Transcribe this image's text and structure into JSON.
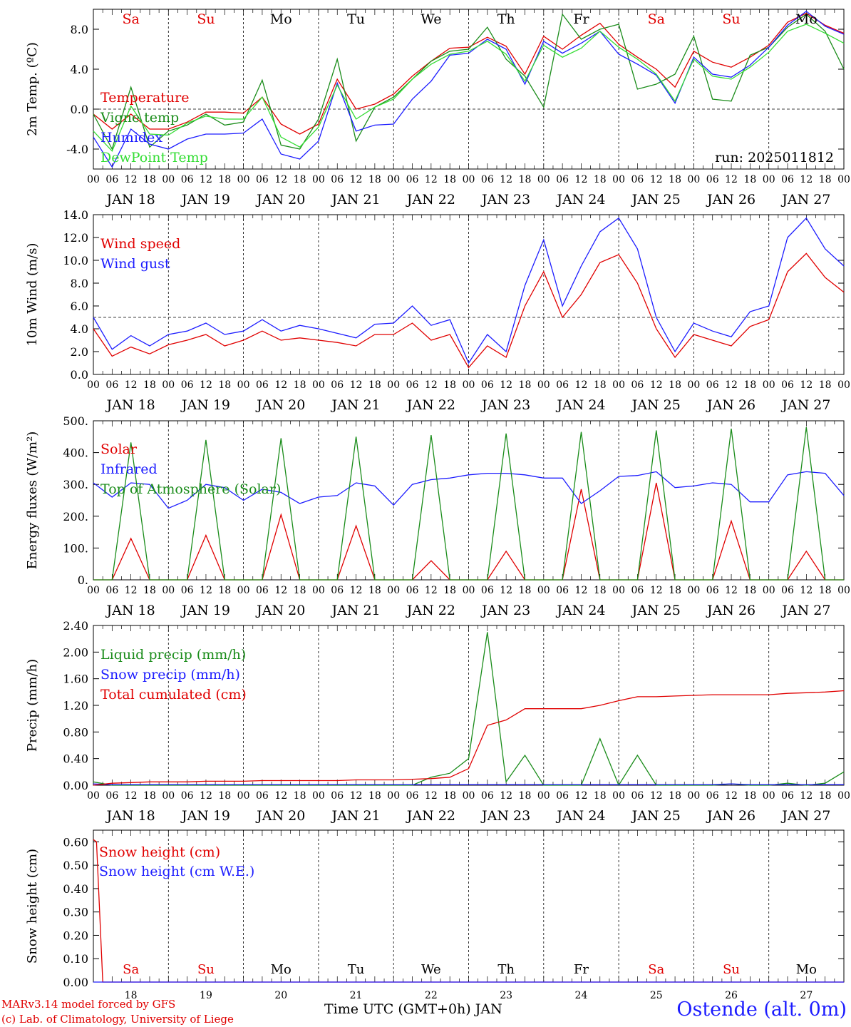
{
  "days": [
    "18",
    "19",
    "20",
    "21",
    "22",
    "23",
    "24",
    "25",
    "26",
    "27"
  ],
  "day_labels": [
    "JAN 18",
    "JAN 19",
    "JAN 20",
    "JAN 21",
    "JAN 22",
    "JAN 23",
    "JAN 24",
    "JAN 25",
    "JAN 26",
    "JAN 27"
  ],
  "weekday_labels": [
    "Sa",
    "Su",
    "Mo",
    "Tu",
    "We",
    "Th",
    "Fr",
    "Sa",
    "Su",
    "Mo"
  ],
  "weekday_colors": [
    "#e00000",
    "#e00000",
    "#000000",
    "#000000",
    "#000000",
    "#000000",
    "#000000",
    "#e00000",
    "#e00000",
    "#000000"
  ],
  "hour_ticks": [
    "00",
    "06",
    "12",
    "18"
  ],
  "final_tick": "00",
  "colors": {
    "red": "#e00000",
    "green": "#1a8c1a",
    "blue": "#1c1cff",
    "lime": "#33dd33"
  },
  "footer": {
    "model": "MARv3.14 model forced by GFS",
    "credit": "(c) Lab. of Climatology, University of Liege",
    "xlabel": "Time UTC (GMT+0h) JAN",
    "station": "Ostende (alt. 0m)"
  },
  "chart_data": [
    {
      "id": "temp",
      "type": "line",
      "ylabel": "2m Temp. (ºC)",
      "ylim": [
        -6,
        10
      ],
      "yticks": [
        -4.0,
        0.0,
        4.0,
        8.0
      ],
      "ytick_labels": [
        "-4.0",
        "0.0",
        "4.0",
        "8.0"
      ],
      "ref_line": 0,
      "run_label": "run: 2025011812",
      "legend": [
        "Temperature",
        "Vigne temp",
        "Humidex",
        "DewPoint Temp"
      ],
      "x_hours": [
        0,
        6,
        12,
        18,
        24,
        30,
        36,
        42,
        48,
        54,
        60,
        66,
        72,
        78,
        84,
        90,
        96,
        102,
        108,
        114,
        120,
        126,
        132,
        138,
        144,
        150,
        156,
        162,
        168,
        174,
        180,
        186,
        192,
        198,
        204,
        210,
        216,
        222,
        228,
        234,
        240
      ],
      "series": [
        {
          "name": "Temperature",
          "color": "#e00000",
          "values": [
            -0.5,
            -2.0,
            -0.5,
            -2.0,
            -2.0,
            -1.3,
            -0.3,
            -0.3,
            -0.4,
            1.2,
            -1.5,
            -2.5,
            -1.5,
            3.0,
            0.0,
            0.5,
            1.5,
            3.3,
            4.8,
            6.1,
            6.2,
            7.2,
            6.3,
            3.5,
            7.3,
            6.0,
            7.4,
            8.6,
            6.5,
            5.2,
            4.0,
            2.2,
            5.8,
            4.7,
            4.2,
            5.2,
            6.4,
            8.7,
            9.6,
            8.4,
            7.6
          ]
        },
        {
          "name": "Vigne temp",
          "color": "#1a8c1a",
          "values": [
            -0.5,
            -4.0,
            2.2,
            -3.8,
            -2.2,
            -1.6,
            -0.5,
            -1.6,
            -1.3,
            2.9,
            -3.6,
            -4.0,
            -1.0,
            5.0,
            -3.2,
            0.2,
            1.2,
            3.0,
            4.8,
            5.8,
            6.0,
            8.2,
            5.0,
            3.3,
            0.2,
            9.5,
            7.0,
            8.0,
            8.5,
            2.0,
            2.5,
            3.5,
            7.3,
            1.0,
            0.8,
            5.4,
            6.2,
            8.2,
            9.5,
            7.8,
            4.0
          ]
        },
        {
          "name": "Humidex",
          "color": "#1c1cff",
          "values": [
            -2.8,
            -5.8,
            -2.0,
            -3.5,
            -4.0,
            -3.0,
            -2.5,
            -2.5,
            -2.4,
            -1.0,
            -4.5,
            -5.0,
            -3.2,
            2.6,
            -2.2,
            -1.6,
            -1.5,
            1.0,
            2.8,
            5.4,
            5.6,
            7.0,
            6.0,
            2.5,
            6.8,
            5.6,
            6.6,
            7.8,
            5.5,
            4.5,
            3.4,
            0.6,
            5.2,
            3.5,
            3.2,
            4.4,
            6.2,
            8.4,
            9.8,
            8.3,
            7.5
          ]
        },
        {
          "name": "DewPoint Temp",
          "color": "#33dd33",
          "values": [
            -2.2,
            -4.2,
            0.3,
            -2.5,
            -2.6,
            -1.4,
            -0.7,
            -1.0,
            -1.0,
            1.2,
            -2.8,
            -3.8,
            -1.8,
            2.4,
            -1.0,
            0.2,
            1.0,
            3.0,
            4.5,
            5.5,
            5.8,
            6.8,
            5.5,
            2.8,
            6.4,
            5.2,
            6.1,
            7.8,
            6.2,
            5.0,
            3.5,
            0.8,
            5.0,
            3.3,
            3.0,
            4.2,
            5.7,
            7.8,
            8.5,
            7.6,
            6.6
          ]
        }
      ]
    },
    {
      "id": "wind",
      "type": "line",
      "ylabel": "10m Wind (m/s)",
      "ylim": [
        0,
        14
      ],
      "yticks": [
        0,
        2,
        4,
        6,
        8,
        10,
        12,
        14
      ],
      "ytick_labels": [
        "0.0",
        "2.0",
        "4.0",
        "6.0",
        "8.0",
        "10.0",
        "12.0",
        "14.0"
      ],
      "ref_line": 5,
      "legend": [
        "Wind speed",
        "Wind gust"
      ],
      "x_hours": [
        0,
        6,
        12,
        18,
        24,
        30,
        36,
        42,
        48,
        54,
        60,
        66,
        72,
        78,
        84,
        90,
        96,
        102,
        108,
        114,
        120,
        126,
        132,
        138,
        144,
        150,
        156,
        162,
        168,
        174,
        180,
        186,
        192,
        198,
        204,
        210,
        216,
        222,
        228,
        234,
        240
      ],
      "series": [
        {
          "name": "Wind speed",
          "color": "#e00000",
          "values": [
            4.0,
            1.6,
            2.4,
            1.8,
            2.6,
            3.0,
            3.5,
            2.5,
            3.0,
            3.8,
            3.0,
            3.2,
            3.0,
            2.8,
            2.5,
            3.5,
            3.5,
            4.5,
            3.0,
            3.5,
            0.6,
            2.5,
            1.5,
            6.0,
            9.0,
            5.0,
            7.0,
            9.8,
            10.5,
            8.0,
            4.0,
            1.5,
            3.5,
            3.0,
            2.5,
            4.2,
            4.8,
            9.0,
            10.6,
            8.5,
            7.2
          ]
        },
        {
          "name": "Wind gust",
          "color": "#1c1cff",
          "values": [
            5.0,
            2.2,
            3.4,
            2.5,
            3.5,
            3.8,
            4.5,
            3.5,
            3.8,
            4.8,
            3.8,
            4.3,
            4.0,
            3.6,
            3.2,
            4.4,
            4.5,
            6.0,
            4.3,
            4.8,
            1.0,
            3.5,
            2.0,
            7.8,
            11.8,
            6.0,
            9.5,
            12.5,
            13.7,
            11.0,
            5.0,
            2.0,
            4.5,
            3.8,
            3.3,
            5.5,
            6.0,
            12.0,
            13.7,
            11.0,
            9.5
          ]
        }
      ]
    },
    {
      "id": "energy",
      "type": "line",
      "ylabel": "Energy fluxes (W/m²)",
      "ylim": [
        0,
        500
      ],
      "yticks": [
        0,
        100,
        200,
        300,
        400,
        500
      ],
      "ytick_labels": [
        "0.",
        "100.",
        "200.",
        "300.",
        "400.",
        "500."
      ],
      "legend": [
        "Solar",
        "Infrared",
        "Top of Atmosphere (Solar)"
      ],
      "x_hours": [
        0,
        6,
        12,
        18,
        24,
        30,
        36,
        42,
        48,
        54,
        60,
        66,
        72,
        78,
        84,
        90,
        96,
        102,
        108,
        114,
        120,
        126,
        132,
        138,
        144,
        150,
        156,
        162,
        168,
        174,
        180,
        186,
        192,
        198,
        204,
        210,
        216,
        222,
        228,
        234,
        240
      ],
      "series": [
        {
          "name": "Solar",
          "color": "#e00000",
          "values": [
            0,
            0,
            130,
            0,
            0,
            0,
            140,
            0,
            0,
            0,
            205,
            0,
            0,
            0,
            170,
            0,
            0,
            0,
            60,
            0,
            0,
            0,
            90,
            0,
            0,
            0,
            285,
            0,
            0,
            0,
            305,
            0,
            0,
            0,
            185,
            0,
            0,
            0,
            90,
            0,
            0
          ]
        },
        {
          "name": "Infrared",
          "color": "#1c1cff",
          "values": [
            305,
            260,
            305,
            300,
            225,
            250,
            300,
            290,
            250,
            285,
            275,
            240,
            260,
            265,
            305,
            295,
            235,
            300,
            315,
            320,
            330,
            335,
            335,
            330,
            320,
            320,
            240,
            280,
            325,
            328,
            340,
            290,
            295,
            305,
            300,
            245,
            245,
            330,
            340,
            335,
            265
          ]
        },
        {
          "name": "Top of Atmosphere (Solar)",
          "color": "#1a8c1a",
          "values": [
            0,
            0,
            432,
            0,
            0,
            0,
            440,
            0,
            0,
            0,
            445,
            0,
            0,
            0,
            450,
            0,
            0,
            0,
            455,
            0,
            0,
            0,
            460,
            0,
            0,
            0,
            465,
            0,
            0,
            0,
            470,
            0,
            0,
            0,
            475,
            0,
            0,
            0,
            480,
            0,
            0
          ]
        }
      ]
    },
    {
      "id": "precip",
      "type": "line",
      "ylabel": "Precip (mm/h)",
      "ylim": [
        0,
        2.4
      ],
      "yticks": [
        0,
        0.4,
        0.8,
        1.2,
        1.6,
        2.0,
        2.4
      ],
      "ytick_labels": [
        "0.00",
        "0.40",
        "0.80",
        "1.20",
        "1.60",
        "2.00",
        "2.40"
      ],
      "legend": [
        "Liquid precip (mm/h)",
        "Snow precip (mm/h)",
        "Total cumulated (cm)"
      ],
      "x_hours": [
        0,
        6,
        12,
        18,
        24,
        30,
        36,
        42,
        48,
        54,
        60,
        66,
        72,
        78,
        84,
        90,
        96,
        102,
        108,
        114,
        120,
        126,
        132,
        138,
        144,
        150,
        156,
        162,
        168,
        174,
        180,
        186,
        192,
        198,
        204,
        210,
        216,
        222,
        228,
        234,
        240
      ],
      "series": [
        {
          "name": "Liquid precip (mm/h)",
          "color": "#1a8c1a",
          "values": [
            0.05,
            0,
            0,
            0,
            0,
            0,
            0,
            0,
            0,
            0,
            0,
            0,
            0,
            0,
            0,
            0,
            0,
            0,
            0.12,
            0.18,
            0.4,
            2.3,
            0.05,
            0.45,
            0.0,
            0.0,
            0.0,
            0.7,
            0.0,
            0.45,
            0.0,
            0.0,
            0.0,
            0.0,
            0.02,
            0.0,
            0.0,
            0.03,
            0.0,
            0.03,
            0.2
          ]
        },
        {
          "name": "Snow precip (mm/h)",
          "color": "#1c1cff",
          "values": [
            0.02,
            0.01,
            0.01,
            0.01,
            0.01,
            0.01,
            0.01,
            0.01,
            0.01,
            0.01,
            0.01,
            0.01,
            0.01,
            0.01,
            0.01,
            0.01,
            0.01,
            0.01,
            0.01,
            0.01,
            0.01,
            0.01,
            0.01,
            0.01,
            0.01,
            0.01,
            0.01,
            0.01,
            0.01,
            0.01,
            0.01,
            0.01,
            0.01,
            0.01,
            0.02,
            0.01,
            0.01,
            0.01,
            0.01,
            0.01,
            0.01
          ]
        },
        {
          "name": "Total cumulated (cm)",
          "color": "#e00000",
          "values": [
            0.0,
            0.03,
            0.04,
            0.05,
            0.05,
            0.05,
            0.06,
            0.06,
            0.06,
            0.07,
            0.07,
            0.07,
            0.07,
            0.07,
            0.08,
            0.08,
            0.08,
            0.09,
            0.1,
            0.12,
            0.25,
            0.9,
            0.98,
            1.15,
            1.15,
            1.15,
            1.15,
            1.2,
            1.27,
            1.33,
            1.33,
            1.34,
            1.35,
            1.36,
            1.36,
            1.36,
            1.36,
            1.38,
            1.39,
            1.4,
            1.42
          ]
        }
      ]
    },
    {
      "id": "snow",
      "type": "line",
      "ylabel": "Snow height (cm)",
      "ylim": [
        0,
        0.65
      ],
      "yticks": [
        0,
        0.1,
        0.2,
        0.3,
        0.4,
        0.5,
        0.6
      ],
      "ytick_labels": [
        "0.00",
        "0.10",
        "0.20",
        "0.30",
        "0.40",
        "0.50",
        "0.60"
      ],
      "legend": [
        "Snow height (cm)",
        "Snow height (cm W.E.)"
      ],
      "x_hours": [
        0,
        1,
        2,
        3,
        240
      ],
      "series": [
        {
          "name": "Snow height (cm)",
          "color": "#e00000",
          "values": [
            0.61,
            0.6,
            0.3,
            0.0,
            0.0
          ]
        },
        {
          "name": "Snow height (cm W.E.)",
          "color": "#1c1cff",
          "values": [
            0,
            0,
            0,
            0,
            0
          ]
        }
      ]
    }
  ]
}
